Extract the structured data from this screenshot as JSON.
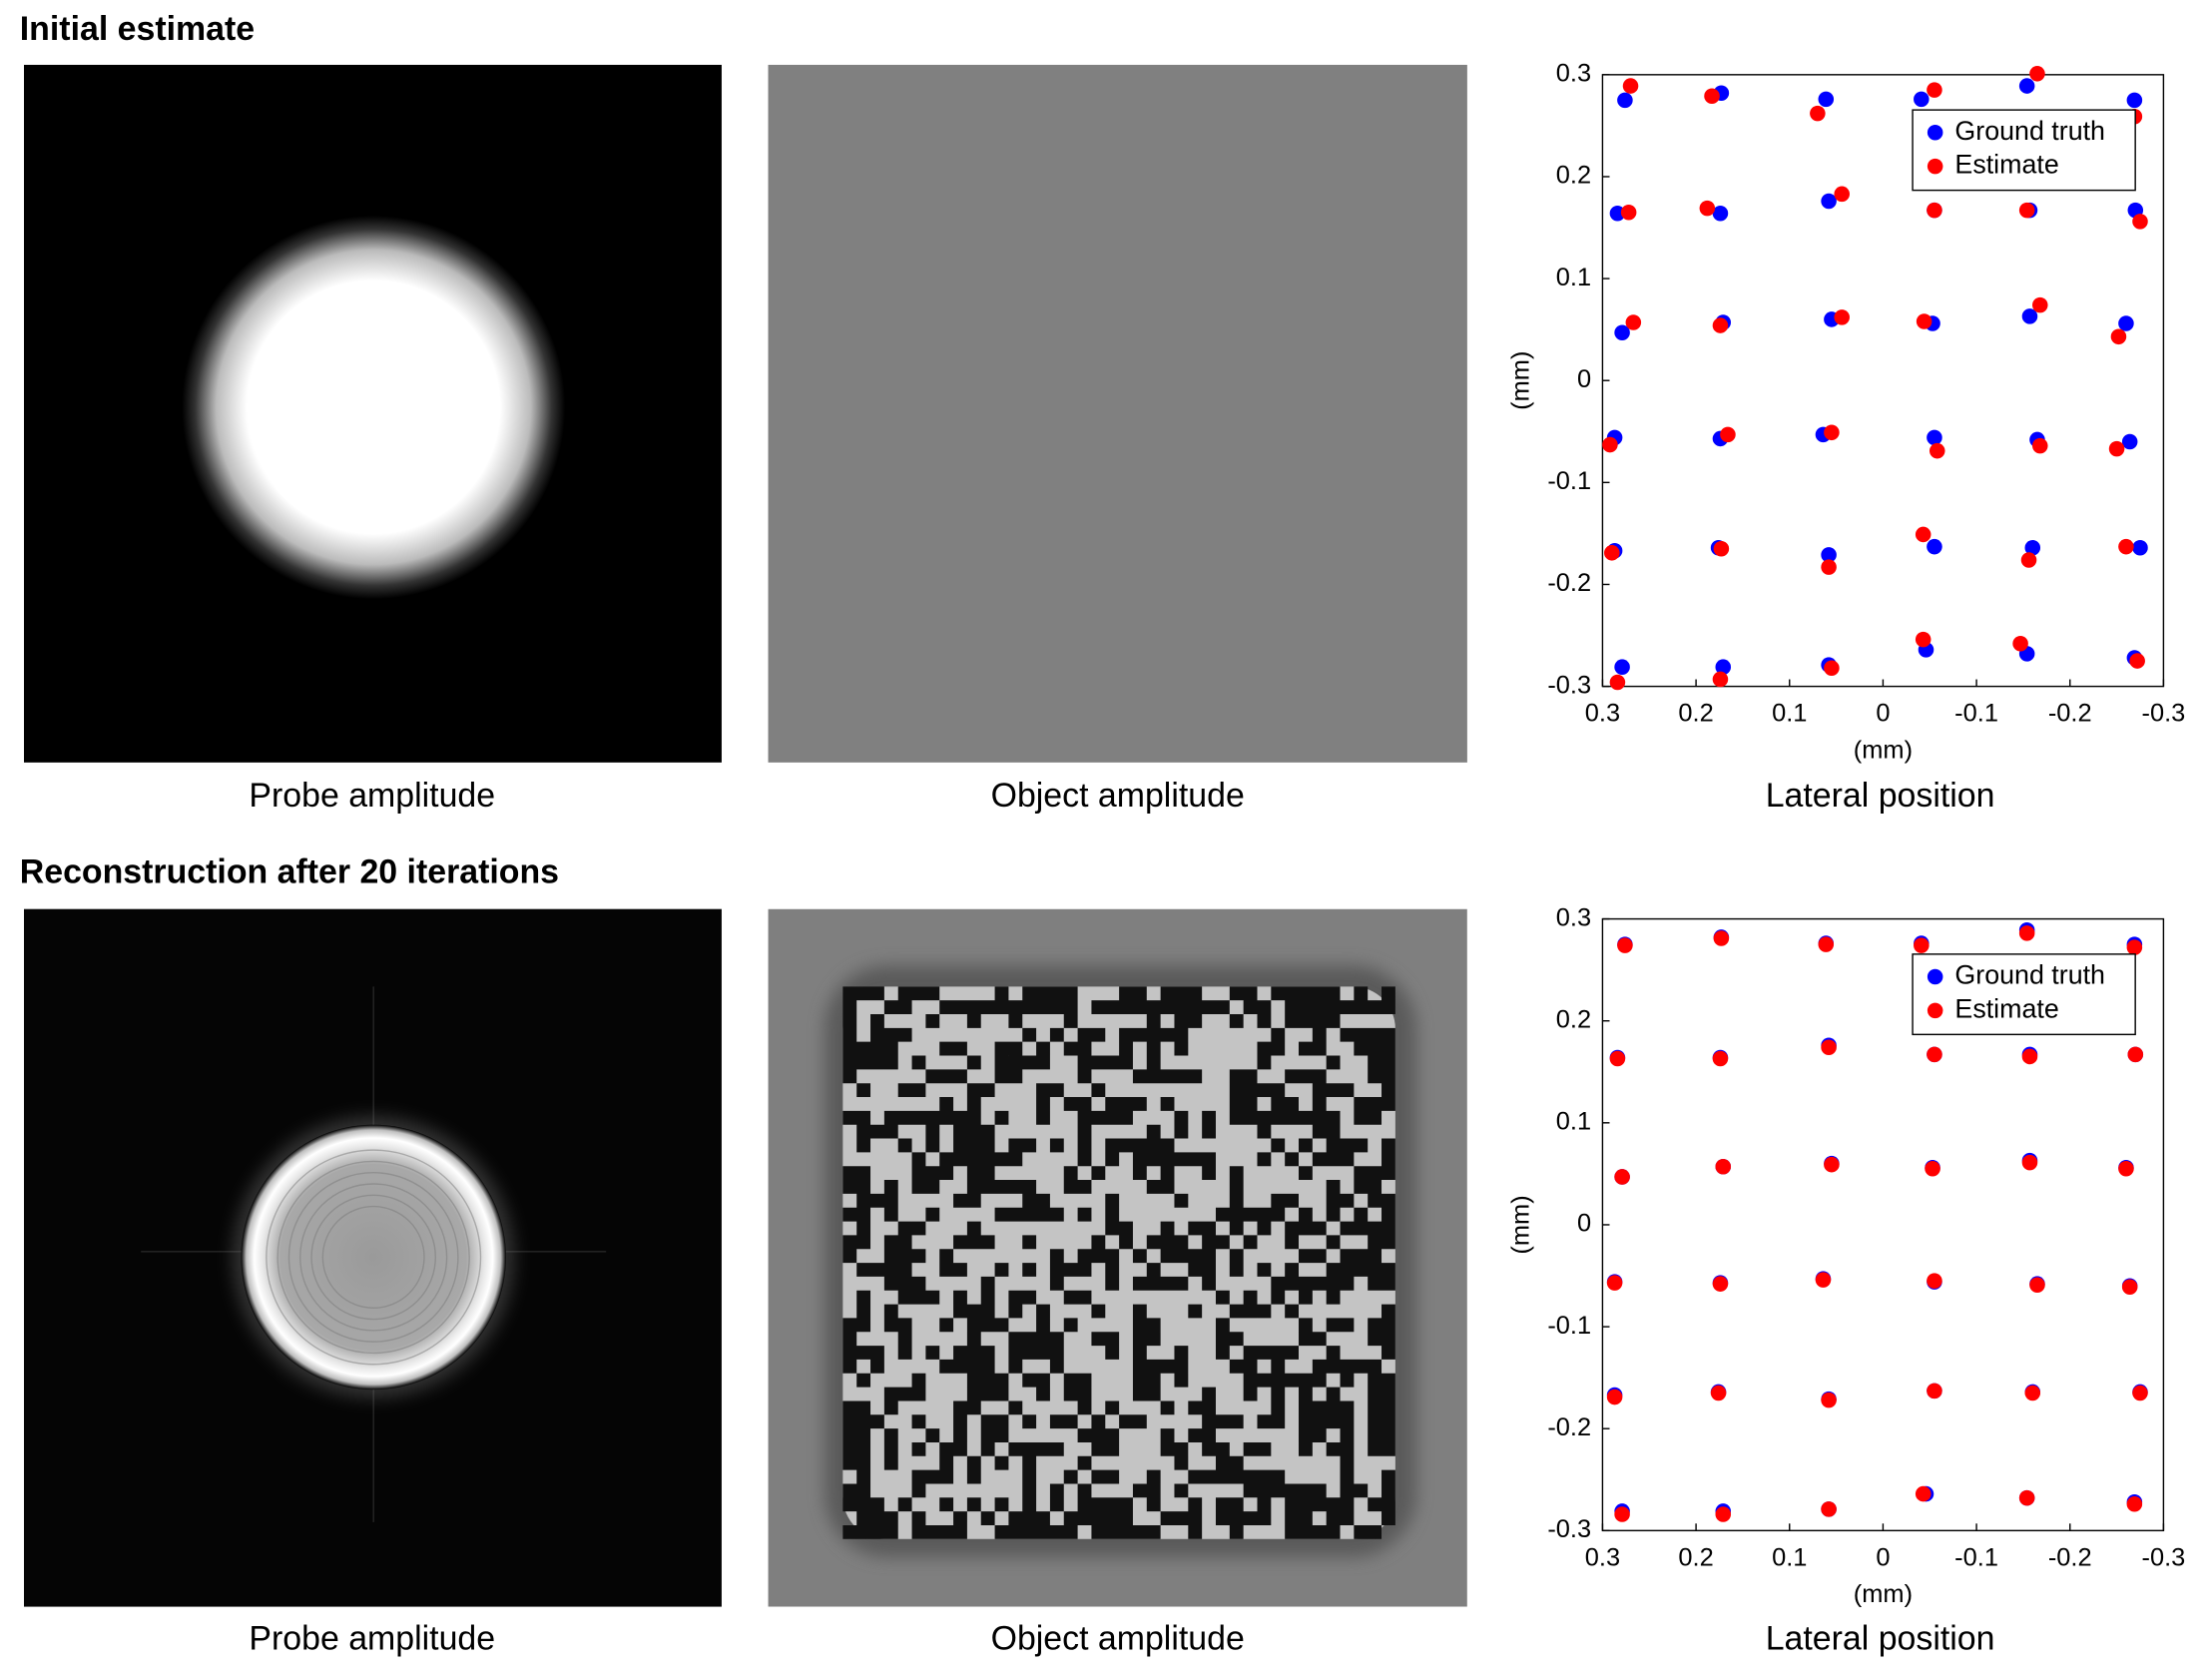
{
  "sections": [
    {
      "title": "Initial estimate",
      "captions": [
        "Probe amplitude",
        "Object amplitude",
        "Lateral position"
      ]
    },
    {
      "title": "Reconstruction after 20 iterations",
      "captions": [
        "Probe amplitude",
        "Object amplitude",
        "Lateral position"
      ]
    }
  ],
  "chart_data": [
    {
      "type": "scatter",
      "xlabel": "(mm)",
      "ylabel": "(mm)",
      "xlim": [
        0.3,
        -0.3
      ],
      "ylim": [
        -0.3,
        0.3
      ],
      "xticks": [
        0.3,
        0.2,
        0.1,
        0,
        -0.1,
        -0.2,
        -0.3
      ],
      "yticks": [
        -0.3,
        -0.2,
        -0.1,
        0,
        0.1,
        0.2,
        0.3
      ],
      "legend": "upper right",
      "series": [
        {
          "name": "Ground truth",
          "color": "#0000ff",
          "x": [
            0.276,
            0.173,
            0.061,
            -0.041,
            -0.154,
            -0.269,
            0.284,
            0.174,
            0.058,
            -0.055,
            -0.157,
            -0.27,
            0.279,
            0.171,
            0.055,
            -0.053,
            -0.157,
            -0.26,
            0.287,
            0.174,
            0.064,
            -0.055,
            -0.165,
            -0.264,
            0.287,
            0.176,
            0.058,
            -0.055,
            -0.16,
            -0.275,
            0.279,
            0.171,
            0.058,
            -0.046,
            -0.154,
            -0.269
          ],
          "values": [
            0.275,
            0.282,
            0.276,
            0.276,
            0.289,
            0.275,
            0.164,
            0.164,
            0.176,
            0.167,
            0.167,
            0.167,
            0.047,
            0.057,
            0.06,
            0.056,
            0.063,
            0.056,
            -0.056,
            -0.057,
            -0.053,
            -0.056,
            -0.058,
            -0.06,
            -0.167,
            -0.164,
            -0.171,
            -0.163,
            -0.164,
            -0.164,
            -0.281,
            -0.281,
            -0.279,
            -0.264,
            -0.268,
            -0.272
          ]
        },
        {
          "name": "Estimate",
          "color": "#ff0000",
          "x": [
            0.27,
            0.183,
            0.07,
            -0.055,
            -0.165,
            -0.269,
            0.272,
            0.188,
            0.044,
            -0.055,
            -0.154,
            -0.275,
            0.267,
            0.174,
            0.044,
            -0.044,
            -0.168,
            -0.252,
            0.292,
            0.166,
            0.055,
            -0.058,
            -0.168,
            -0.25,
            0.29,
            0.173,
            0.058,
            -0.043,
            -0.156,
            -0.26,
            0.284,
            0.174,
            0.055,
            -0.043,
            -0.147,
            -0.272
          ],
          "values": [
            0.289,
            0.279,
            0.262,
            0.285,
            0.301,
            0.259,
            0.165,
            0.169,
            0.183,
            0.167,
            0.167,
            0.156,
            0.057,
            0.054,
            0.062,
            0.058,
            0.074,
            0.043,
            -0.063,
            -0.053,
            -0.051,
            -0.069,
            -0.064,
            -0.067,
            -0.169,
            -0.165,
            -0.183,
            -0.151,
            -0.176,
            -0.163,
            -0.296,
            -0.293,
            -0.282,
            -0.254,
            -0.258,
            -0.275
          ]
        }
      ]
    },
    {
      "type": "scatter",
      "xlabel": "(mm)",
      "ylabel": "(mm)",
      "xlim": [
        0.3,
        -0.3
      ],
      "ylim": [
        -0.3,
        0.3
      ],
      "xticks": [
        0.3,
        0.2,
        0.1,
        0,
        -0.1,
        -0.2,
        -0.3
      ],
      "yticks": [
        -0.3,
        -0.2,
        -0.1,
        0,
        0.1,
        0.2,
        0.3
      ],
      "legend": "upper right",
      "series": [
        {
          "name": "Ground truth",
          "color": "#0000ff",
          "x": [
            0.276,
            0.173,
            0.061,
            -0.041,
            -0.154,
            -0.269,
            0.284,
            0.174,
            0.058,
            -0.055,
            -0.157,
            -0.27,
            0.279,
            0.171,
            0.055,
            -0.053,
            -0.157,
            -0.26,
            0.287,
            0.174,
            0.064,
            -0.055,
            -0.165,
            -0.264,
            0.287,
            0.176,
            0.058,
            -0.055,
            -0.16,
            -0.275,
            0.279,
            0.171,
            0.058,
            -0.046,
            -0.154,
            -0.269
          ],
          "values": [
            0.275,
            0.282,
            0.276,
            0.276,
            0.289,
            0.275,
            0.164,
            0.164,
            0.176,
            0.167,
            0.167,
            0.167,
            0.047,
            0.057,
            0.06,
            0.056,
            0.063,
            0.056,
            -0.056,
            -0.057,
            -0.053,
            -0.056,
            -0.058,
            -0.06,
            -0.167,
            -0.164,
            -0.171,
            -0.163,
            -0.164,
            -0.164,
            -0.281,
            -0.281,
            -0.279,
            -0.264,
            -0.268,
            -0.272
          ]
        },
        {
          "name": "Estimate",
          "color": "#ff0000",
          "x": [
            0.276,
            0.173,
            0.061,
            -0.041,
            -0.154,
            -0.269,
            0.284,
            0.174,
            0.058,
            -0.055,
            -0.157,
            -0.27,
            0.279,
            0.171,
            0.055,
            -0.053,
            -0.157,
            -0.26,
            0.287,
            0.174,
            0.064,
            -0.055,
            -0.165,
            -0.264,
            0.287,
            0.176,
            0.058,
            -0.055,
            -0.16,
            -0.275,
            0.279,
            0.171,
            0.058,
            -0.043,
            -0.154,
            -0.269
          ],
          "values": [
            0.274,
            0.281,
            0.275,
            0.274,
            0.286,
            0.272,
            0.163,
            0.163,
            0.174,
            0.167,
            0.165,
            0.167,
            0.047,
            0.057,
            0.059,
            0.055,
            0.061,
            0.055,
            -0.057,
            -0.058,
            -0.054,
            -0.055,
            -0.059,
            -0.061,
            -0.169,
            -0.165,
            -0.172,
            -0.163,
            -0.165,
            -0.165,
            -0.284,
            -0.284,
            -0.279,
            -0.264,
            -0.268,
            -0.274
          ]
        }
      ]
    }
  ]
}
